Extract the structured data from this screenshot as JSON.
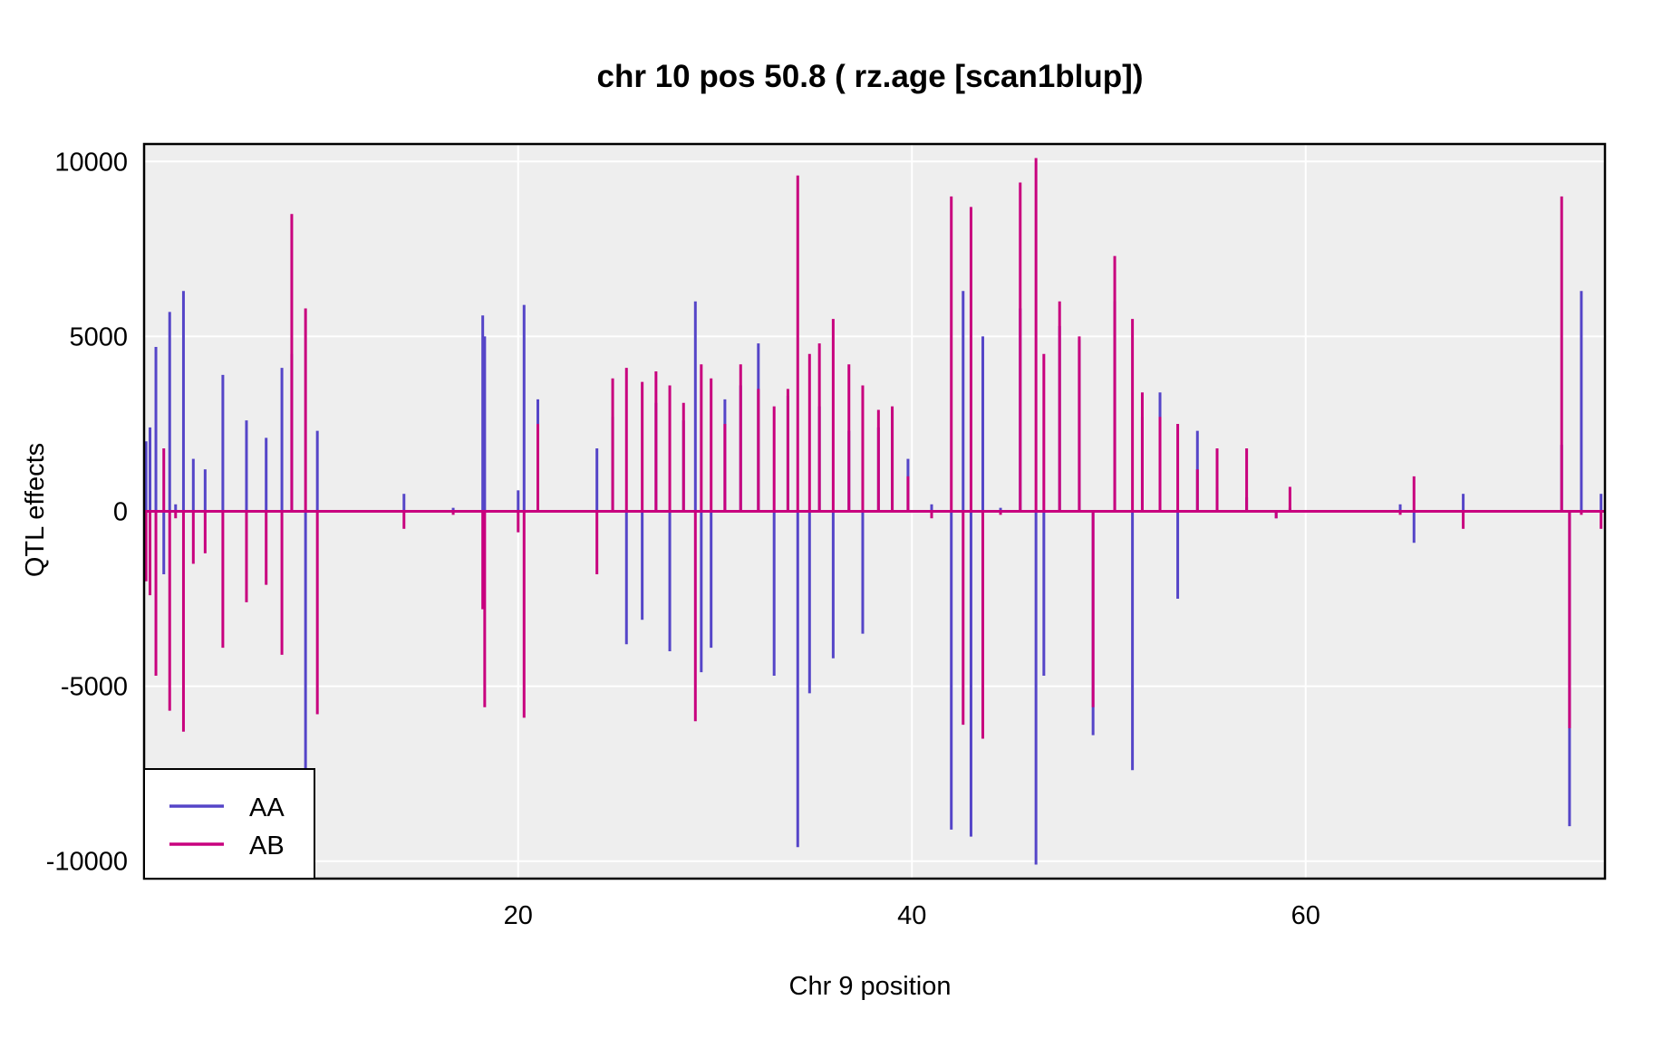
{
  "chart_data": {
    "type": "line",
    "title": "chr 10 pos 50.8 ( rz.age  [scan1blup])",
    "xlabel": "Chr 9 position",
    "ylabel": "QTL effects",
    "xlim": [
      1,
      75.2
    ],
    "ylim": [
      -10500,
      10500
    ],
    "x_ticks": [
      20,
      40,
      60
    ],
    "x_tick_labels": [
      "20",
      "40",
      "60"
    ],
    "y_ticks": [
      10000,
      5000,
      0,
      -5000,
      -10000
    ],
    "y_tick_labels": [
      "10000",
      "5000",
      "0",
      "-5000",
      "-10000"
    ],
    "grid": true,
    "background": "#eeeeee",
    "legend_position": "bottom-left",
    "x": [
      1.1,
      1.3,
      1.6,
      2.0,
      2.3,
      2.6,
      3.0,
      3.5,
      4.1,
      5.0,
      6.2,
      7.2,
      8.0,
      8.5,
      9.2,
      9.8,
      10.3,
      11.3,
      14.2,
      16.7,
      18.2,
      18.3,
      20.0,
      20.3,
      21.0,
      24.0,
      24.8,
      25.5,
      26.3,
      27.0,
      27.7,
      28.4,
      29.0,
      29.3,
      29.8,
      30.5,
      31.3,
      32.2,
      33.0,
      33.7,
      34.2,
      34.8,
      35.3,
      36.0,
      36.8,
      37.5,
      38.3,
      39.0,
      39.8,
      41.0,
      42.0,
      42.6,
      43.0,
      43.6,
      44.5,
      45.5,
      46.3,
      46.7,
      47.5,
      48.5,
      49.2,
      50.3,
      51.2,
      51.7,
      52.6,
      53.5,
      54.5,
      55.5,
      57.0,
      58.5,
      59.2,
      64.8,
      65.5,
      68.0,
      68.4,
      69.7,
      70.8,
      73.0,
      73.4,
      74.0,
      75.0
    ],
    "series": [
      {
        "name": "AA",
        "color": "#5545c8",
        "values": [
          2000,
          2400,
          4700,
          -1800,
          5700,
          200,
          6300,
          1500,
          1200,
          3900,
          2600,
          2100,
          4100,
          4500,
          -8500,
          2300,
          0,
          0,
          500,
          100,
          5600,
          5000,
          600,
          5900,
          3200,
          1800,
          2700,
          -3800,
          -3100,
          3100,
          -4000,
          2600,
          6000,
          -4600,
          -3900,
          3200,
          3600,
          4800,
          -4700,
          3300,
          -9600,
          -5200,
          3000,
          -4200,
          2300,
          -3500,
          2400,
          2900,
          1500,
          200,
          -9100,
          6300,
          -9300,
          5000,
          100,
          5800,
          -10100,
          -4700,
          5300,
          4900,
          -6400,
          6000,
          -7400,
          2700,
          3400,
          -2500,
          2300,
          700,
          400,
          -200,
          100,
          200,
          -900,
          500,
          0,
          0,
          0,
          1900,
          -9000,
          6300,
          500
        ]
      },
      {
        "name": "AB",
        "color": "#c8007e",
        "values": [
          -2000,
          -2400,
          -4700,
          1800,
          -5700,
          -200,
          -6300,
          -1500,
          -1200,
          -3900,
          -2600,
          -2100,
          -4100,
          8500,
          5800,
          -5800,
          0,
          0,
          -500,
          -100,
          -2800,
          -5600,
          -600,
          -5900,
          2500,
          -1800,
          3800,
          4100,
          3700,
          4000,
          3600,
          3100,
          -6000,
          4200,
          3800,
          2500,
          4200,
          3500,
          3000,
          3500,
          9600,
          4500,
          4800,
          5500,
          4200,
          3600,
          2900,
          3000,
          1000,
          -200,
          9000,
          -6100,
          8700,
          -6500,
          -100,
          9400,
          10100,
          4500,
          6000,
          5000,
          -5600,
          7300,
          5500,
          3400,
          2700,
          2500,
          1200,
          1800,
          1800,
          -200,
          700,
          -100,
          1000,
          -500,
          0,
          0,
          0,
          9000,
          -6200,
          -100,
          -500
        ]
      }
    ]
  }
}
